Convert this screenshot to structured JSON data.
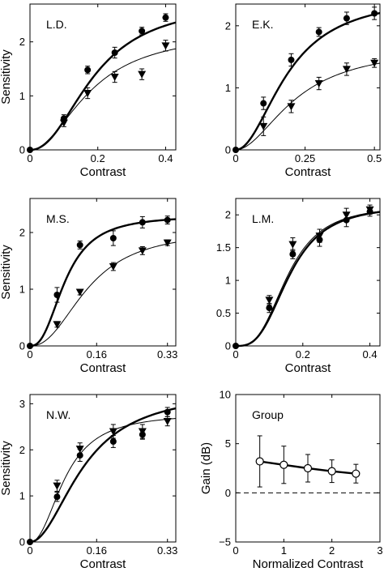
{
  "chart_data": [
    {
      "type": "scatter",
      "panel_label": "L.D.",
      "xlabel": "Contrast",
      "ylabel": "Sensitivity",
      "xlim": [
        0,
        0.43
      ],
      "ylim": [
        0,
        2.7
      ],
      "xticks": [
        0,
        0.2,
        0.4
      ],
      "xticklabels": [
        "0",
        "0.2",
        "0.4"
      ],
      "yticks": [
        0,
        1,
        2
      ],
      "yticklabels": [
        "0",
        "1",
        "2"
      ],
      "series": [
        {
          "marker": "circle",
          "curve": "thick",
          "points": [
            {
              "x": 0,
              "y": 0,
              "err": 0
            },
            {
              "x": 0.1,
              "y": 0.58,
              "err": 0.07
            },
            {
              "x": 0.17,
              "y": 1.48,
              "err": 0.07
            },
            {
              "x": 0.25,
              "y": 1.8,
              "err": 0.1
            },
            {
              "x": 0.33,
              "y": 2.2,
              "err": 0.07
            },
            {
              "x": 0.4,
              "y": 2.45,
              "err": 0.07
            }
          ],
          "fit": {
            "model": "sigmoid",
            "k": 0.19,
            "n": 2.2,
            "ymax": 2.75
          }
        },
        {
          "marker": "triangle-down",
          "curve": "thin",
          "points": [
            {
              "x": 0.1,
              "y": 0.5,
              "err": 0.07
            },
            {
              "x": 0.17,
              "y": 1.05,
              "err": 0.1
            },
            {
              "x": 0.25,
              "y": 1.35,
              "err": 0.1
            },
            {
              "x": 0.33,
              "y": 1.4,
              "err": 0.1
            },
            {
              "x": 0.4,
              "y": 1.93,
              "err": 0.1
            }
          ],
          "fit": {
            "model": "sigmoid",
            "k": 0.18,
            "n": 2.0,
            "ymax": 2.2
          }
        }
      ]
    },
    {
      "type": "scatter",
      "panel_label": "E.K.",
      "xlabel": "Contrast",
      "ylabel": "",
      "xlim": [
        0,
        0.52
      ],
      "ylim": [
        0,
        2.35
      ],
      "xticks": [
        0,
        0.25,
        0.5
      ],
      "xticklabels": [
        "0",
        "0.25",
        "0.5"
      ],
      "yticks": [
        0,
        1,
        2
      ],
      "yticklabels": [
        "0",
        "1",
        "2"
      ],
      "series": [
        {
          "marker": "circle",
          "curve": "thick",
          "points": [
            {
              "x": 0,
              "y": 0,
              "err": 0
            },
            {
              "x": 0.1,
              "y": 0.75,
              "err": 0.1
            },
            {
              "x": 0.2,
              "y": 1.45,
              "err": 0.1
            },
            {
              "x": 0.3,
              "y": 1.9,
              "err": 0.07
            },
            {
              "x": 0.4,
              "y": 2.12,
              "err": 0.1
            },
            {
              "x": 0.5,
              "y": 2.2,
              "err": 0.1
            }
          ],
          "fit": {
            "model": "sigmoid",
            "k": 0.19,
            "n": 2.0,
            "ymax": 2.5
          }
        },
        {
          "marker": "triangle-down",
          "curve": "thin",
          "points": [
            {
              "x": 0.1,
              "y": 0.38,
              "err": 0.15
            },
            {
              "x": 0.2,
              "y": 0.7,
              "err": 0.1
            },
            {
              "x": 0.3,
              "y": 1.07,
              "err": 0.1
            },
            {
              "x": 0.4,
              "y": 1.3,
              "err": 0.1
            },
            {
              "x": 0.5,
              "y": 1.4,
              "err": 0.07
            }
          ],
          "fit": {
            "model": "sigmoid",
            "k": 0.22,
            "n": 1.9,
            "ymax": 1.67
          }
        }
      ]
    },
    {
      "type": "scatter",
      "panel_label": "M.S.",
      "xlabel": "Contrast",
      "ylabel": "Sensitivity",
      "xlim": [
        0,
        0.35
      ],
      "ylim": [
        0,
        2.6
      ],
      "xticks": [
        0,
        0.16,
        0.33
      ],
      "xticklabels": [
        "0",
        "0.16",
        "0.33"
      ],
      "yticks": [
        0,
        1,
        2
      ],
      "yticklabels": [
        "0",
        "1",
        "2"
      ],
      "series": [
        {
          "marker": "circle",
          "curve": "thick",
          "points": [
            {
              "x": 0,
              "y": 0,
              "err": 0
            },
            {
              "x": 0.065,
              "y": 0.9,
              "err": 0.13
            },
            {
              "x": 0.12,
              "y": 1.78,
              "err": 0.07
            },
            {
              "x": 0.2,
              "y": 1.9,
              "err": 0.13
            },
            {
              "x": 0.27,
              "y": 2.18,
              "err": 0.1
            },
            {
              "x": 0.33,
              "y": 2.22,
              "err": 0.07
            }
          ],
          "fit": {
            "model": "sigmoid",
            "k": 0.085,
            "n": 2.5,
            "ymax": 2.3
          }
        },
        {
          "marker": "triangle-down",
          "curve": "thin",
          "points": [
            {
              "x": 0.065,
              "y": 0.38,
              "err": 0.05
            },
            {
              "x": 0.12,
              "y": 0.95,
              "err": 0.05
            },
            {
              "x": 0.2,
              "y": 1.4,
              "err": 0.07
            },
            {
              "x": 0.27,
              "y": 1.68,
              "err": 0.07
            },
            {
              "x": 0.33,
              "y": 1.82,
              "err": 0.05
            }
          ],
          "fit": {
            "model": "sigmoid",
            "k": 0.14,
            "n": 2.3,
            "ymax": 2.05
          }
        }
      ]
    },
    {
      "type": "scatter",
      "panel_label": "L.M.",
      "xlabel": "Contrast",
      "ylabel": "",
      "xlim": [
        0,
        0.43
      ],
      "ylim": [
        0,
        2.25
      ],
      "xticks": [
        0,
        0.2,
        0.4
      ],
      "xticklabels": [
        "0",
        "0.2",
        "0.4"
      ],
      "yticks": [
        0,
        0.5,
        1,
        1.5,
        2
      ],
      "yticklabels": [
        "0",
        "0.5",
        "1",
        "1.5",
        "2"
      ],
      "series": [
        {
          "marker": "circle",
          "curve": "thick",
          "points": [
            {
              "x": 0,
              "y": 0,
              "err": 0
            },
            {
              "x": 0.1,
              "y": 0.58,
              "err": 0.07
            },
            {
              "x": 0.17,
              "y": 1.4,
              "err": 0.07
            },
            {
              "x": 0.25,
              "y": 1.62,
              "err": 0.1
            },
            {
              "x": 0.33,
              "y": 1.92,
              "err": 0.1
            },
            {
              "x": 0.4,
              "y": 2.05,
              "err": 0.07
            }
          ],
          "fit": {
            "model": "sigmoid",
            "k": 0.16,
            "n": 3.0,
            "ymax": 2.15
          }
        },
        {
          "marker": "triangle-down",
          "curve": "thin",
          "points": [
            {
              "x": 0.1,
              "y": 0.7,
              "err": 0.07
            },
            {
              "x": 0.17,
              "y": 1.55,
              "err": 0.1
            },
            {
              "x": 0.25,
              "y": 1.68,
              "err": 0.1
            },
            {
              "x": 0.33,
              "y": 2.0,
              "err": 0.1
            },
            {
              "x": 0.4,
              "y": 2.08,
              "err": 0.07
            }
          ],
          "fit": {
            "model": "sigmoid",
            "k": 0.155,
            "n": 3.0,
            "ymax": 2.15
          }
        }
      ]
    },
    {
      "type": "scatter",
      "panel_label": "N.W.",
      "xlabel": "Contrast",
      "ylabel": "Sensitivity",
      "xlim": [
        0,
        0.35
      ],
      "ylim": [
        0,
        3.2
      ],
      "xticks": [
        0,
        0.16,
        0.33
      ],
      "xticklabels": [
        "0",
        "0.16",
        "0.33"
      ],
      "yticks": [
        0,
        1,
        2,
        3
      ],
      "yticklabels": [
        "0",
        "1",
        "2",
        "3"
      ],
      "series": [
        {
          "marker": "circle",
          "curve": "thick",
          "points": [
            {
              "x": 0,
              "y": 0,
              "err": 0
            },
            {
              "x": 0.065,
              "y": 0.98,
              "err": 0.1
            },
            {
              "x": 0.12,
              "y": 1.88,
              "err": 0.13
            },
            {
              "x": 0.2,
              "y": 2.18,
              "err": 0.13
            },
            {
              "x": 0.27,
              "y": 2.33,
              "err": 0.1
            },
            {
              "x": 0.33,
              "y": 2.82,
              "err": 0.1
            }
          ],
          "fit": {
            "model": "sigmoid",
            "k": 0.13,
            "n": 2.0,
            "ymax": 3.3
          }
        },
        {
          "marker": "triangle-down",
          "curve": "thin",
          "points": [
            {
              "x": 0.065,
              "y": 1.22,
              "err": 0.12
            },
            {
              "x": 0.12,
              "y": 2.02,
              "err": 0.13
            },
            {
              "x": 0.2,
              "y": 2.4,
              "err": 0.15
            },
            {
              "x": 0.27,
              "y": 2.4,
              "err": 0.15
            },
            {
              "x": 0.33,
              "y": 2.62,
              "err": 0.1
            }
          ],
          "fit": {
            "model": "sigmoid",
            "k": 0.085,
            "n": 2.2,
            "ymax": 2.8
          }
        }
      ]
    },
    {
      "type": "line",
      "panel_label": "Group",
      "xlabel": "Normalized Contrast",
      "ylabel": "Gain (dB)",
      "xlim": [
        0,
        3
      ],
      "ylim": [
        -5,
        10
      ],
      "xticks": [
        0,
        1,
        2,
        3
      ],
      "xticklabels": [
        "0",
        "1",
        "2",
        "3"
      ],
      "yticks": [
        -5,
        0,
        5,
        10
      ],
      "yticklabels": [
        "−5",
        "0",
        "5",
        "10"
      ],
      "reference_line_y": 0,
      "series": [
        {
          "marker": "open-circle",
          "points": [
            {
              "x": 0.5,
              "y": 3.2,
              "err": 2.6
            },
            {
              "x": 1.0,
              "y": 2.85,
              "err": 1.9
            },
            {
              "x": 1.5,
              "y": 2.5,
              "err": 1.4
            },
            {
              "x": 2.0,
              "y": 2.2,
              "err": 1.15
            },
            {
              "x": 2.5,
              "y": 1.95,
              "err": 0.95
            }
          ]
        }
      ]
    }
  ]
}
